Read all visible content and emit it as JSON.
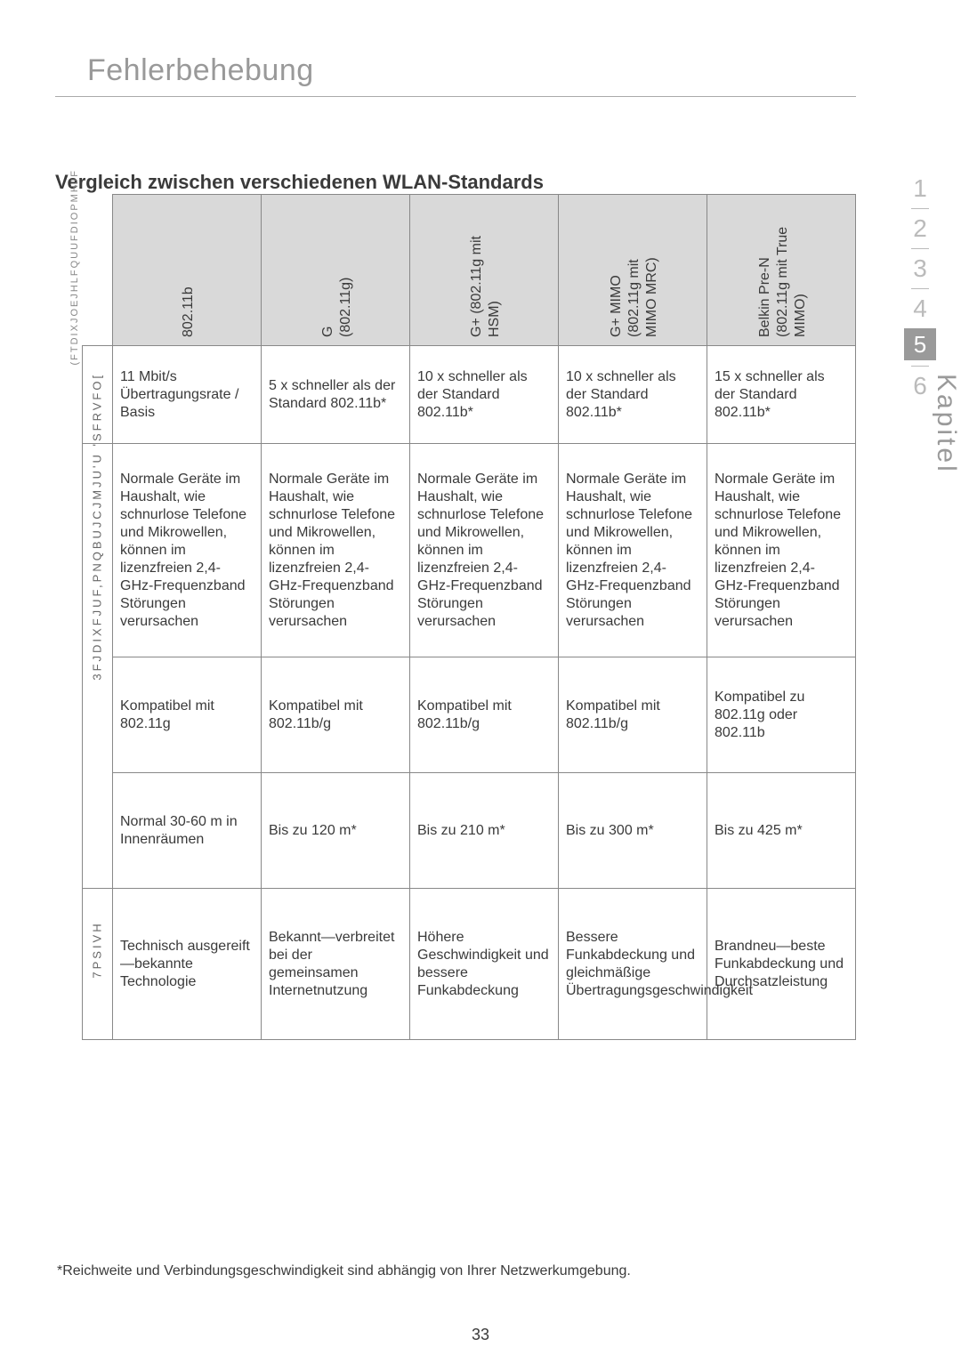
{
  "page": {
    "title": "Fehlerbehebung",
    "subheading": "Vergleich zwischen verschiedenen WLAN-Standards",
    "side_vertical": "(FTDIXJOEJHLFQUUFDIOPMHJF",
    "footnote": "*Reichweite und Verbindungsgeschwindigkeit sind abhängig von Ihrer Netzwerkumgebung.",
    "page_number": "33",
    "kapitel_label": "Kapitel"
  },
  "chapter_nav": {
    "items": [
      "1",
      "2",
      "3",
      "4",
      "5",
      "6"
    ],
    "active_index": 4,
    "active_bg": "#9a9a9a",
    "active_fg": "#ffffff",
    "inactive_fg": "#bbbbbb"
  },
  "table": {
    "border_color": "#888888",
    "header_bg": "#d9d9d9",
    "font_size": 16,
    "columns": [
      {
        "label": "802.11b"
      },
      {
        "label": "G\n(802.11g)"
      },
      {
        "label": "G+ (802.11g mit\nHSM)"
      },
      {
        "label": "G+ MIMO\n(802.11g mit\nMIMO MRC)"
      },
      {
        "label": "Belkin Pre-N\n(802.11g mit True\nMIMO)"
      }
    ],
    "row_labels": [
      "",
      "3FJDIXFJUF,PNQBUJCJMJU'U 'SFRVFO[",
      "",
      "",
      "7PSIVH"
    ],
    "rows": {
      "speed": [
        "11 Mbit/s Übertragungsrate / Basis",
        "5 x schneller als der Standard 802.11b*",
        "10 x schneller als der Standard 802.11b*",
        "10 x schneller als der Standard 802.11b*",
        "15 x schneller als der Standard 802.11b*"
      ],
      "interference": [
        "Normale Geräte im Haushalt, wie schnurlose Telefone und Mikrowellen, können im lizenzfreien 2,4-GHz-Frequenzband Störungen verursachen",
        "Normale Geräte im Haushalt, wie schnurlose Telefone und Mikrowellen, können im lizenzfreien 2,4-GHz-Frequenzband Störungen verursachen",
        "Normale Geräte im Haushalt, wie schnurlose Telefone und Mikrowellen, können im lizenzfreien 2,4-GHz-Frequenzband Störungen verursachen",
        "Normale Geräte im Haushalt, wie schnurlose Telefone und Mikrowellen, können im lizenzfreien 2,4-GHz-Frequenzband Störungen verursachen",
        "Normale Geräte im Haushalt, wie schnurlose Telefone und Mikrowellen, können im lizenzfreien 2,4-GHz-Frequenzband Störungen verursachen"
      ],
      "compat": [
        "Kompatibel mit 802.11g",
        "Kompatibel mit 802.11b/g",
        "Kompatibel mit 802.11b/g",
        "Kompatibel mit 802.11b/g",
        "Kompatibel zu 802.11g oder 802.11b"
      ],
      "range": [
        "Normal 30-60 m in Innenräumen",
        "Bis zu 120 m*",
        "Bis zu 210 m*",
        "Bis zu 300 m*",
        "Bis zu 425 m*"
      ],
      "advantage": [
        "Technisch ausgereift—bekannte Technologie",
        "Bekannt—verbreitet bei der gemeinsamen Internetnutzung",
        "Höhere Geschwindigkeit und bessere Funkabdeckung",
        "Bessere Funkabdeckung und gleichmäßige Übertragungsgeschwindigkeit",
        "Brandneu—beste Funkabdeckung und Durchsatzleistung"
      ]
    }
  },
  "colors": {
    "title": "#999999",
    "text": "#3a3a3a",
    "border": "#888888",
    "header_bg": "#d9d9d9",
    "background": "#ffffff"
  },
  "typography": {
    "title_size": 34,
    "subheading_size": 22,
    "body_size": 16,
    "footnote_size": 16
  }
}
